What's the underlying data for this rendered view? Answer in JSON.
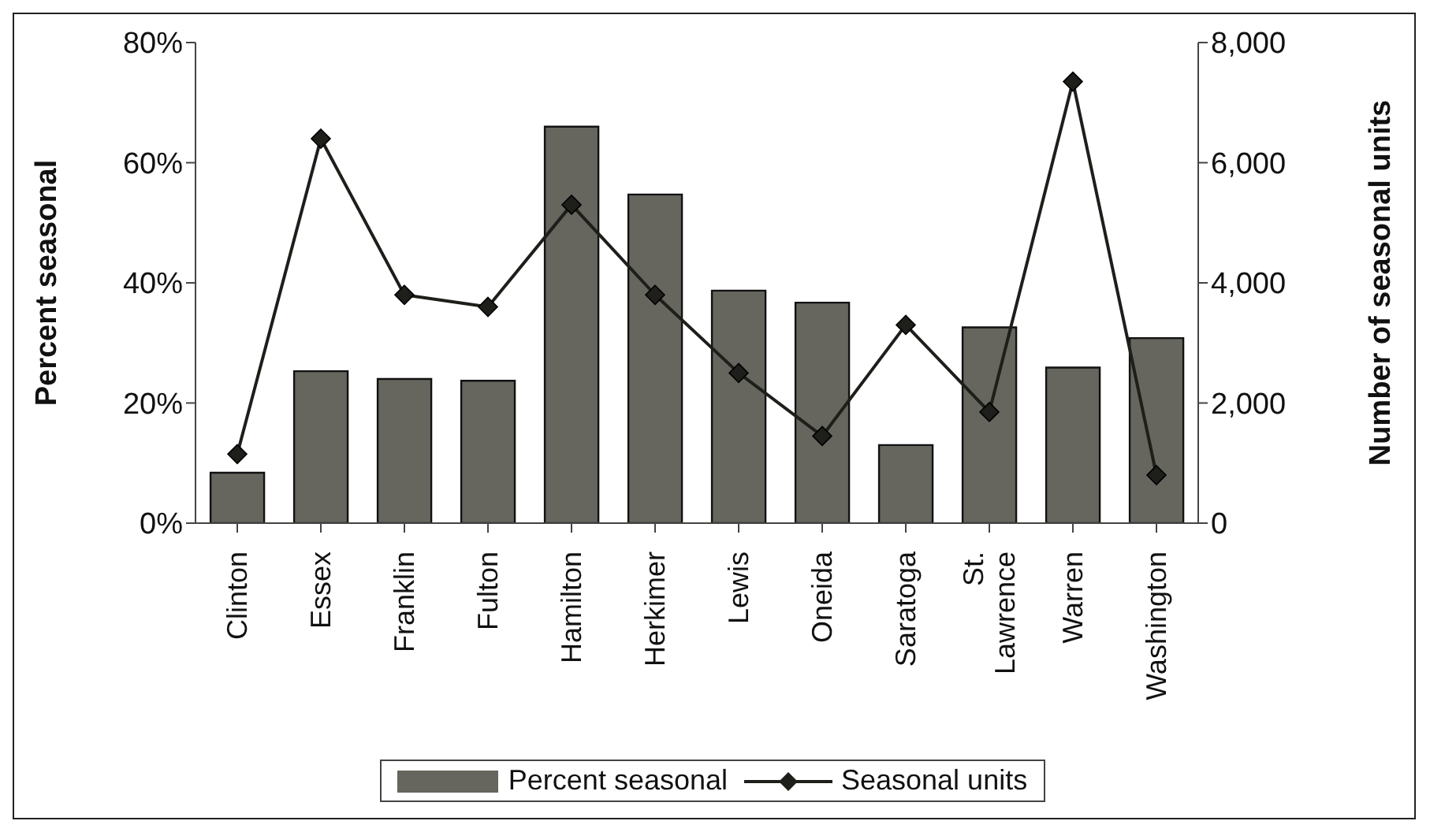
{
  "chart_data": {
    "type": "bar",
    "ylabel": "Percent seasonal",
    "y2label": "Number of seasonal units",
    "categories": [
      "Clinton",
      "Essex",
      "Franklin",
      "Fulton",
      "Hamilton",
      "Herkimer",
      "Lewis",
      "Oneida",
      "Saratoga",
      "St. Lawrence",
      "Warren",
      "Washington"
    ],
    "series": [
      {
        "name": "Percent seasonal",
        "color": "#66665f",
        "values": [
          8.4,
          25.3,
          24,
          23.7,
          66,
          54.7,
          38.7,
          36.7,
          13,
          32.6,
          25.9,
          30.8
        ]
      },
      {
        "name": "Seasonal units",
        "type": "line",
        "axis": "y2",
        "color": "#1e1e1a",
        "values": [
          1150,
          6400,
          3800,
          3600,
          5300,
          3800,
          2500,
          1450,
          3300,
          1850,
          7350,
          800
        ]
      }
    ],
    "ylim": [
      0,
      80
    ],
    "yticks": [
      {
        "value": 0,
        "label": "0%"
      },
      {
        "value": 20,
        "label": "20%"
      },
      {
        "value": 40,
        "label": "40%"
      },
      {
        "value": 60,
        "label": "60%"
      },
      {
        "value": 80,
        "label": "80%"
      }
    ],
    "y2lim": [
      0,
      8000
    ],
    "y2ticks": [
      {
        "value": 0,
        "label": "0"
      },
      {
        "value": 2000,
        "label": "2,000"
      },
      {
        "value": 4000,
        "label": "4,000"
      },
      {
        "value": 6000,
        "label": "6,000"
      },
      {
        "value": 8000,
        "label": "8,000"
      }
    ],
    "marker": "diamond",
    "line_style": "solid",
    "grid": false,
    "legend": "bottom"
  }
}
